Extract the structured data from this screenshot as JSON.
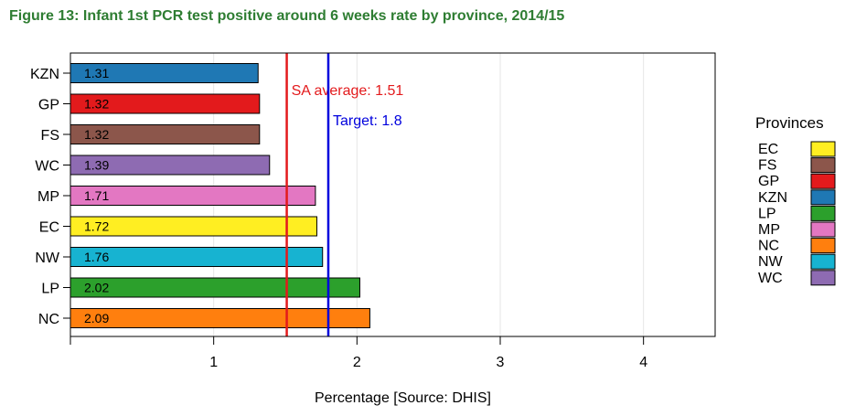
{
  "figure_title": "Figure 13:  Infant 1st PCR test positive around 6 weeks rate by province, 2014/15",
  "chart_data": {
    "type": "bar",
    "orientation": "horizontal",
    "xlabel": "Percentage [Source: DHIS]",
    "xlim": [
      0,
      4.5
    ],
    "xticks": [
      1,
      2,
      3,
      4
    ],
    "grid": true,
    "bars": [
      {
        "category": "KZN",
        "value": 1.31,
        "label": "1.31",
        "color": "#1f78b4"
      },
      {
        "category": "GP",
        "value": 1.32,
        "label": "1.32",
        "color": "#e31a1c"
      },
      {
        "category": "FS",
        "value": 1.32,
        "label": "1.32",
        "color": "#8c564b"
      },
      {
        "category": "WC",
        "value": 1.39,
        "label": "1.39",
        "color": "#8e6bb2"
      },
      {
        "category": "MP",
        "value": 1.71,
        "label": "1.71",
        "color": "#e377c2"
      },
      {
        "category": "EC",
        "value": 1.72,
        "label": "1.72",
        "color": "#ffee22"
      },
      {
        "category": "NW",
        "value": 1.76,
        "label": "1.76",
        "color": "#17b3d1"
      },
      {
        "category": "LP",
        "value": 2.02,
        "label": "2.02",
        "color": "#2ca02c"
      },
      {
        "category": "NC",
        "value": 2.09,
        "label": "2.09",
        "color": "#ff7f0e"
      }
    ],
    "reference_lines": [
      {
        "value": 1.51,
        "label": "SA average: 1.51",
        "color": "#e31a1c"
      },
      {
        "value": 1.8,
        "label": "Target:  1.8",
        "color": "#0000dd"
      }
    ],
    "legend": {
      "title": "Provinces",
      "placement": "right",
      "items": [
        {
          "label": "EC",
          "color": "#ffee22"
        },
        {
          "label": "FS",
          "color": "#8c564b"
        },
        {
          "label": "GP",
          "color": "#e31a1c"
        },
        {
          "label": "KZN",
          "color": "#1f78b4"
        },
        {
          "label": "LP",
          "color": "#2ca02c"
        },
        {
          "label": "MP",
          "color": "#e377c2"
        },
        {
          "label": "NC",
          "color": "#ff7f0e"
        },
        {
          "label": "NW",
          "color": "#17b3d1"
        },
        {
          "label": "WC",
          "color": "#8e6bb2"
        }
      ]
    }
  }
}
